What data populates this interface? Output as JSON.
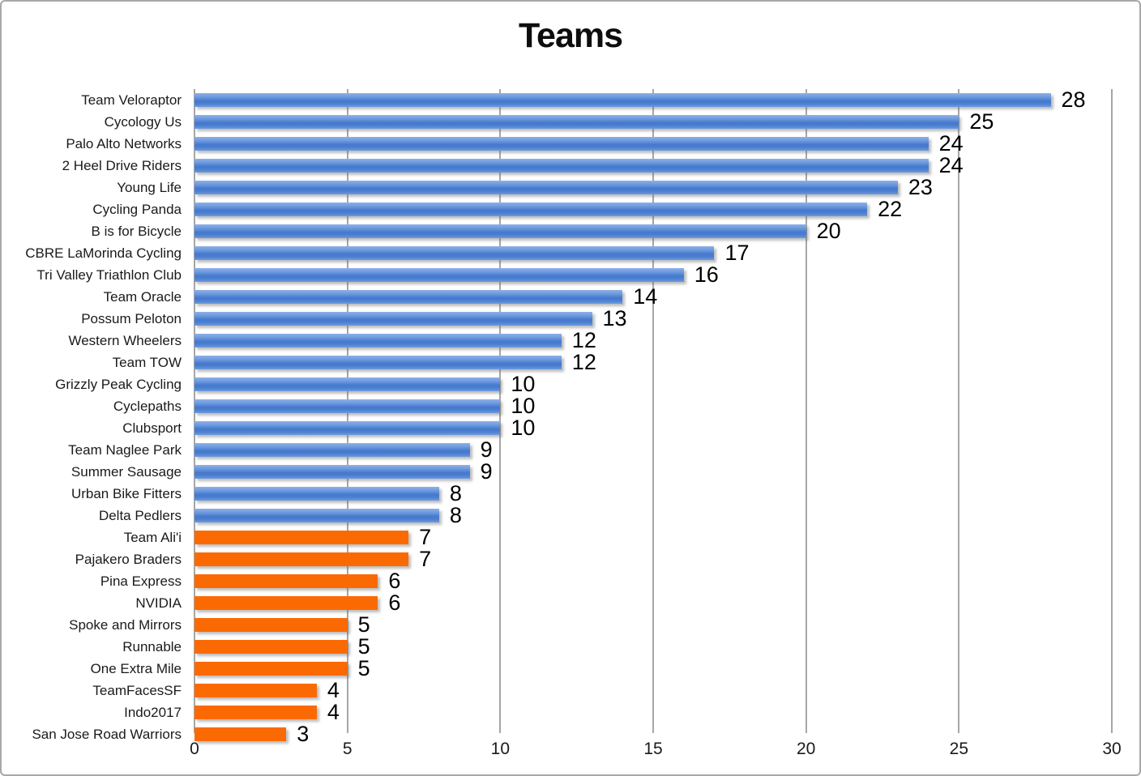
{
  "chart_data": {
    "type": "bar",
    "orientation": "horizontal",
    "title": "Teams",
    "xlabel": "",
    "ylabel": "",
    "xlim": [
      0,
      30
    ],
    "xticks": [
      0,
      5,
      10,
      15,
      20,
      25,
      30
    ],
    "grid": true,
    "data_labels_shown": true,
    "legend": "none",
    "categories": [
      "Team Veloraptor",
      "Cycology Us",
      "Palo Alto Networks",
      "2 Heel Drive Riders",
      "Young Life",
      "Cycling Panda",
      "B is for Bicycle",
      "CBRE LaMorinda Cycling",
      "Tri Valley Triathlon Club",
      "Team Oracle",
      "Possum Peloton",
      "Western Wheelers",
      "Team TOW",
      "Grizzly Peak Cycling",
      "Cyclepaths",
      "Clubsport",
      "Team Naglee Park",
      "Summer Sausage",
      "Urban Bike Fitters",
      "Delta Pedlers",
      "Team Ali'i",
      "Pajakero Braders",
      "Pina Express",
      "NVIDIA",
      "Spoke and Mirrors",
      "Runnable",
      "One Extra Mile",
      "TeamFacesSF",
      "Indo2017",
      "San Jose Road Warriors"
    ],
    "values": [
      28,
      25,
      24,
      24,
      23,
      22,
      20,
      17,
      16,
      14,
      13,
      12,
      12,
      10,
      10,
      10,
      9,
      9,
      8,
      8,
      7,
      7,
      6,
      6,
      5,
      5,
      5,
      4,
      4,
      3
    ],
    "bar_groups": [
      "blue",
      "blue",
      "blue",
      "blue",
      "blue",
      "blue",
      "blue",
      "blue",
      "blue",
      "blue",
      "blue",
      "blue",
      "blue",
      "blue",
      "blue",
      "blue",
      "blue",
      "blue",
      "blue",
      "blue",
      "orange",
      "orange",
      "orange",
      "orange",
      "orange",
      "orange",
      "orange",
      "orange",
      "orange",
      "orange"
    ],
    "palette": {
      "blue_bar": "#5787d6",
      "blue_gradient_top": "#8fb0e7",
      "blue_gradient_mid": "#4478cc",
      "orange_bar": "#fb6a02",
      "gridline": "#a6a6a6",
      "text": "#1a1a1a",
      "chart_border": "#a8a8a8",
      "title_text": "#0d0d0d"
    }
  }
}
